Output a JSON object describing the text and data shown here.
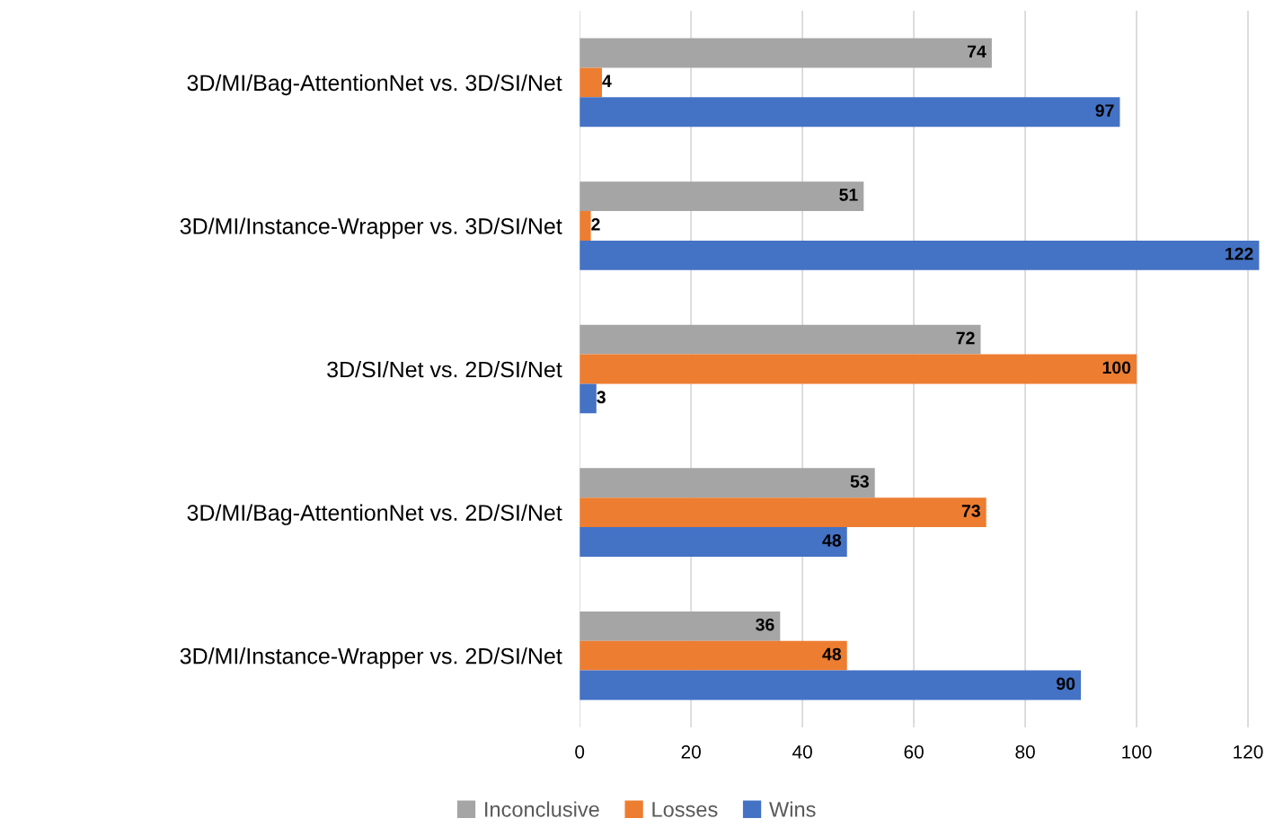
{
  "chart_data": {
    "type": "bar",
    "orientation": "horizontal",
    "categories": [
      "3D/MI/Bag-AttentionNet vs. 3D/SI/Net",
      "3D/MI/Instance-Wrapper vs. 3D/SI/Net",
      "3D/SI/Net vs. 2D/SI/Net",
      "3D/MI/Bag-AttentionNet vs. 2D/SI/Net",
      "3D/MI/Instance-Wrapper vs. 2D/SI/Net"
    ],
    "series": [
      {
        "name": "Inconclusive",
        "color": "#a5a5a5",
        "values": [
          74,
          51,
          72,
          53,
          36
        ]
      },
      {
        "name": "Losses",
        "color": "#ed7d31",
        "values": [
          4,
          2,
          100,
          73,
          48
        ]
      },
      {
        "name": "Wins",
        "color": "#4472c4",
        "values": [
          97,
          122,
          3,
          48,
          90
        ]
      }
    ],
    "xlim": [
      0,
      122.5
    ],
    "xticks": [
      0,
      20,
      40,
      60,
      80,
      100,
      120
    ],
    "grid": "x",
    "legend": "bottom",
    "data_labels": true
  }
}
